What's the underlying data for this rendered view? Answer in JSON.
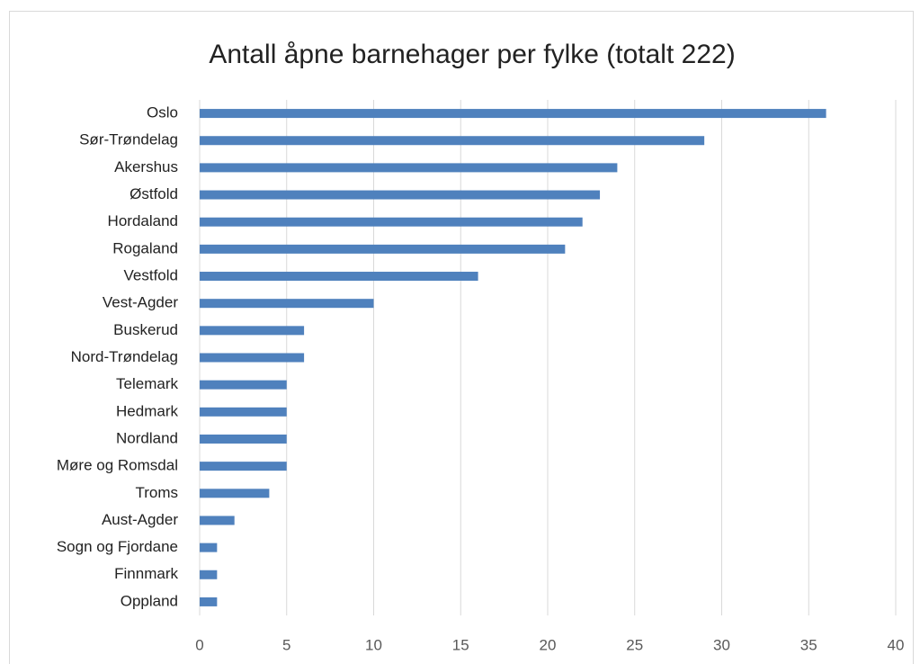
{
  "chart_data": {
    "type": "bar",
    "orientation": "horizontal",
    "title": "Antall åpne barnehager per fylke (totalt 222)",
    "categories": [
      "Oslo",
      "Sør-Trøndelag",
      "Akershus",
      "Østfold",
      "Hordaland",
      "Rogaland",
      "Vestfold",
      "Vest-Agder",
      "Buskerud",
      "Nord-Trøndelag",
      "Telemark",
      "Hedmark",
      "Nordland",
      "Møre og Romsdal",
      "Troms",
      "Aust-Agder",
      "Sogn og Fjordane",
      "Finnmark",
      "Oppland"
    ],
    "values": [
      36,
      29,
      24,
      23,
      22,
      21,
      16,
      10,
      6,
      6,
      5,
      5,
      5,
      5,
      4,
      2,
      1,
      1,
      1
    ],
    "color": "#4f81bd",
    "xlim": [
      0,
      40
    ],
    "xticks": [
      0,
      5,
      10,
      15,
      20,
      25,
      30,
      35,
      40
    ],
    "grid": true
  }
}
